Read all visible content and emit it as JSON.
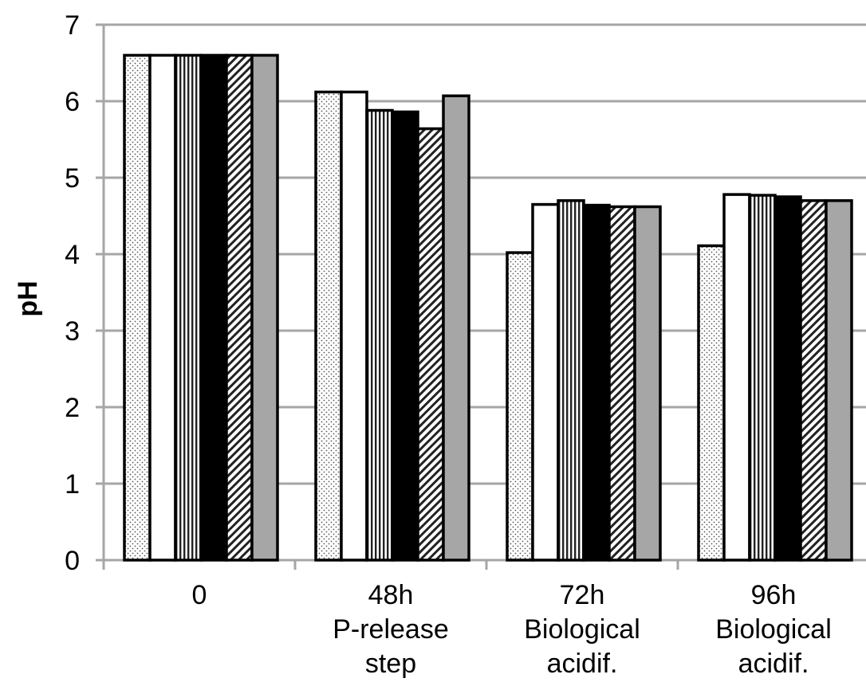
{
  "chart_data": {
    "type": "bar",
    "ylabel": "pH",
    "ylim": [
      0,
      7
    ],
    "yticks": [
      "0",
      "1",
      "2",
      "3",
      "4",
      "5",
      "6",
      "7"
    ],
    "grid": true,
    "legend": "none",
    "categories": [
      [
        "0"
      ],
      [
        "48h",
        "P-release",
        "step"
      ],
      [
        "72h",
        "Biological",
        "acidif."
      ],
      [
        "96h",
        "Biological",
        "acidif."
      ]
    ],
    "series": [
      {
        "fill": "dots",
        "values": [
          6.6,
          6.12,
          4.02,
          4.11
        ]
      },
      {
        "fill": "white",
        "values": [
          6.6,
          6.12,
          4.65,
          4.78
        ]
      },
      {
        "fill": "vertical-lines",
        "values": [
          6.6,
          5.88,
          4.7,
          4.77
        ]
      },
      {
        "fill": "black",
        "values": [
          6.6,
          5.86,
          4.64,
          4.75
        ]
      },
      {
        "fill": "diagonal-lines",
        "values": [
          6.6,
          5.64,
          4.62,
          4.7
        ]
      },
      {
        "fill": "gray",
        "values": [
          6.6,
          6.07,
          4.62,
          4.7
        ]
      }
    ],
    "colors": {
      "gray": "#a6a6a6",
      "grid": "#a6a6a6",
      "black": "#000000",
      "white": "#ffffff"
    }
  }
}
